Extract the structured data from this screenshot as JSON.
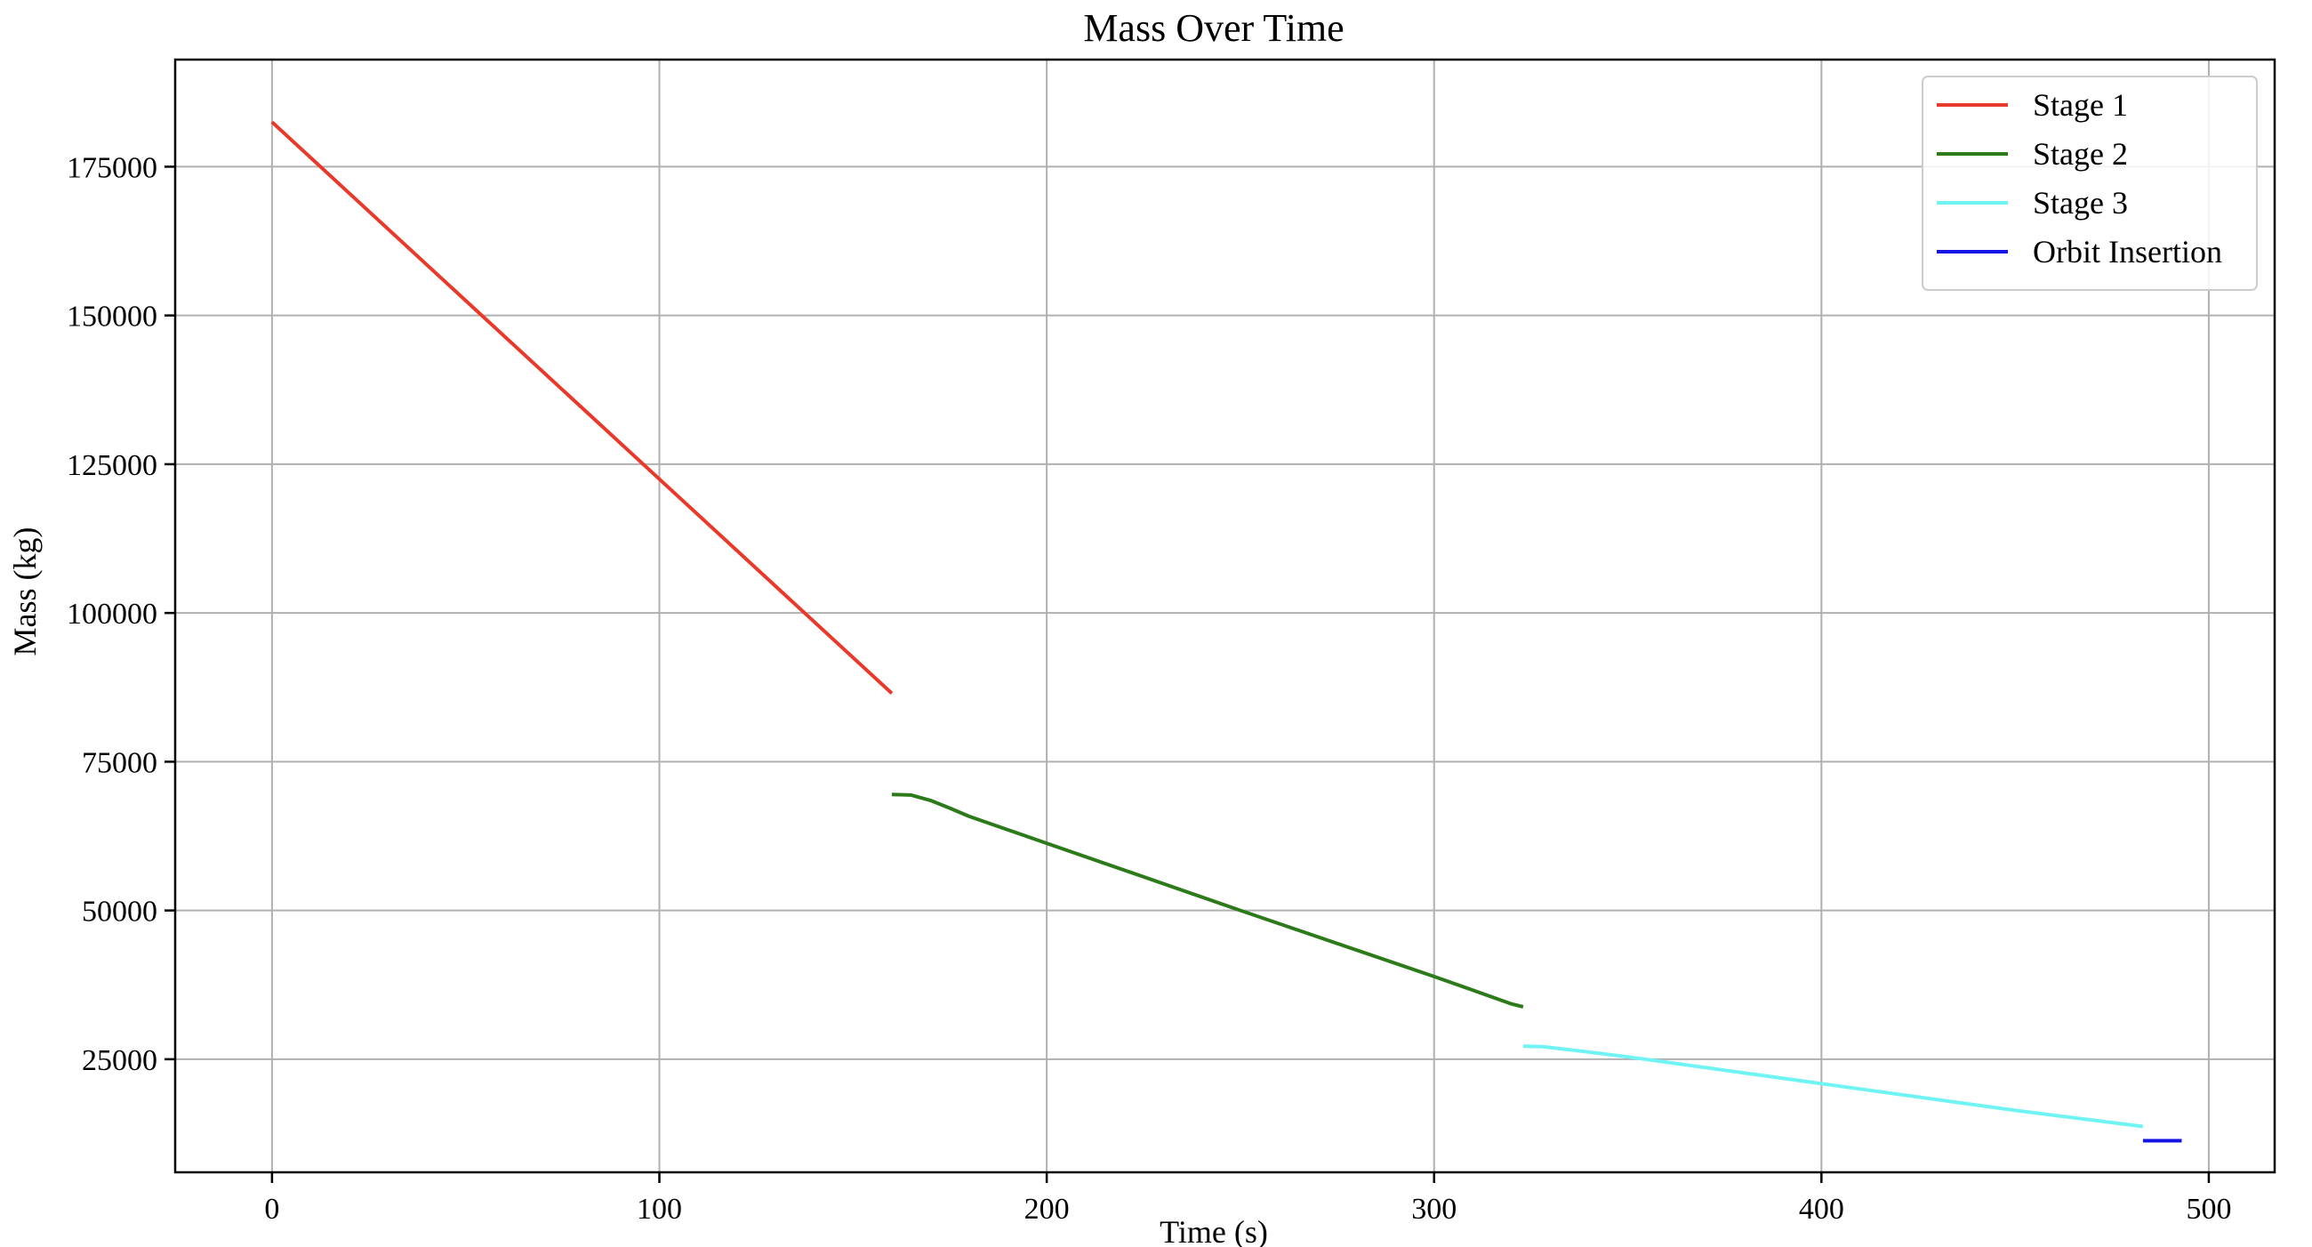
{
  "chart_data": {
    "type": "line",
    "title": "Mass Over Time",
    "xlabel": "Time (s)",
    "ylabel": "Mass (kg)",
    "xlim": [
      -25,
      517
    ],
    "ylim": [
      6000,
      193000
    ],
    "xticks": [
      0,
      100,
      200,
      300,
      400,
      500
    ],
    "yticks": [
      25000,
      50000,
      75000,
      100000,
      125000,
      150000,
      175000
    ],
    "grid": true,
    "legend_position": "top-right",
    "series": [
      {
        "name": "Stage 1",
        "color": "#e8392a",
        "x": [
          0,
          40,
          80,
          120,
          160
        ],
        "y": [
          182500,
          158500,
          134500,
          110500,
          86500
        ]
      },
      {
        "name": "Stage 2",
        "color": "#2d7a1a",
        "x": [
          160,
          165,
          170,
          175,
          180,
          200,
          250,
          300,
          320,
          323
        ],
        "y": [
          69500,
          69400,
          68500,
          67200,
          65800,
          61300,
          50000,
          38900,
          34300,
          33800
        ]
      },
      {
        "name": "Stage 3",
        "color": "#70f4f3",
        "x": [
          323,
          328,
          335,
          350,
          400,
          450,
          483
        ],
        "y": [
          27200,
          27100,
          26600,
          25400,
          20900,
          16400,
          13700
        ]
      },
      {
        "name": "Orbit Insertion",
        "color": "#1414e6",
        "x": [
          483,
          493
        ],
        "y": [
          11300,
          11300
        ]
      }
    ]
  }
}
